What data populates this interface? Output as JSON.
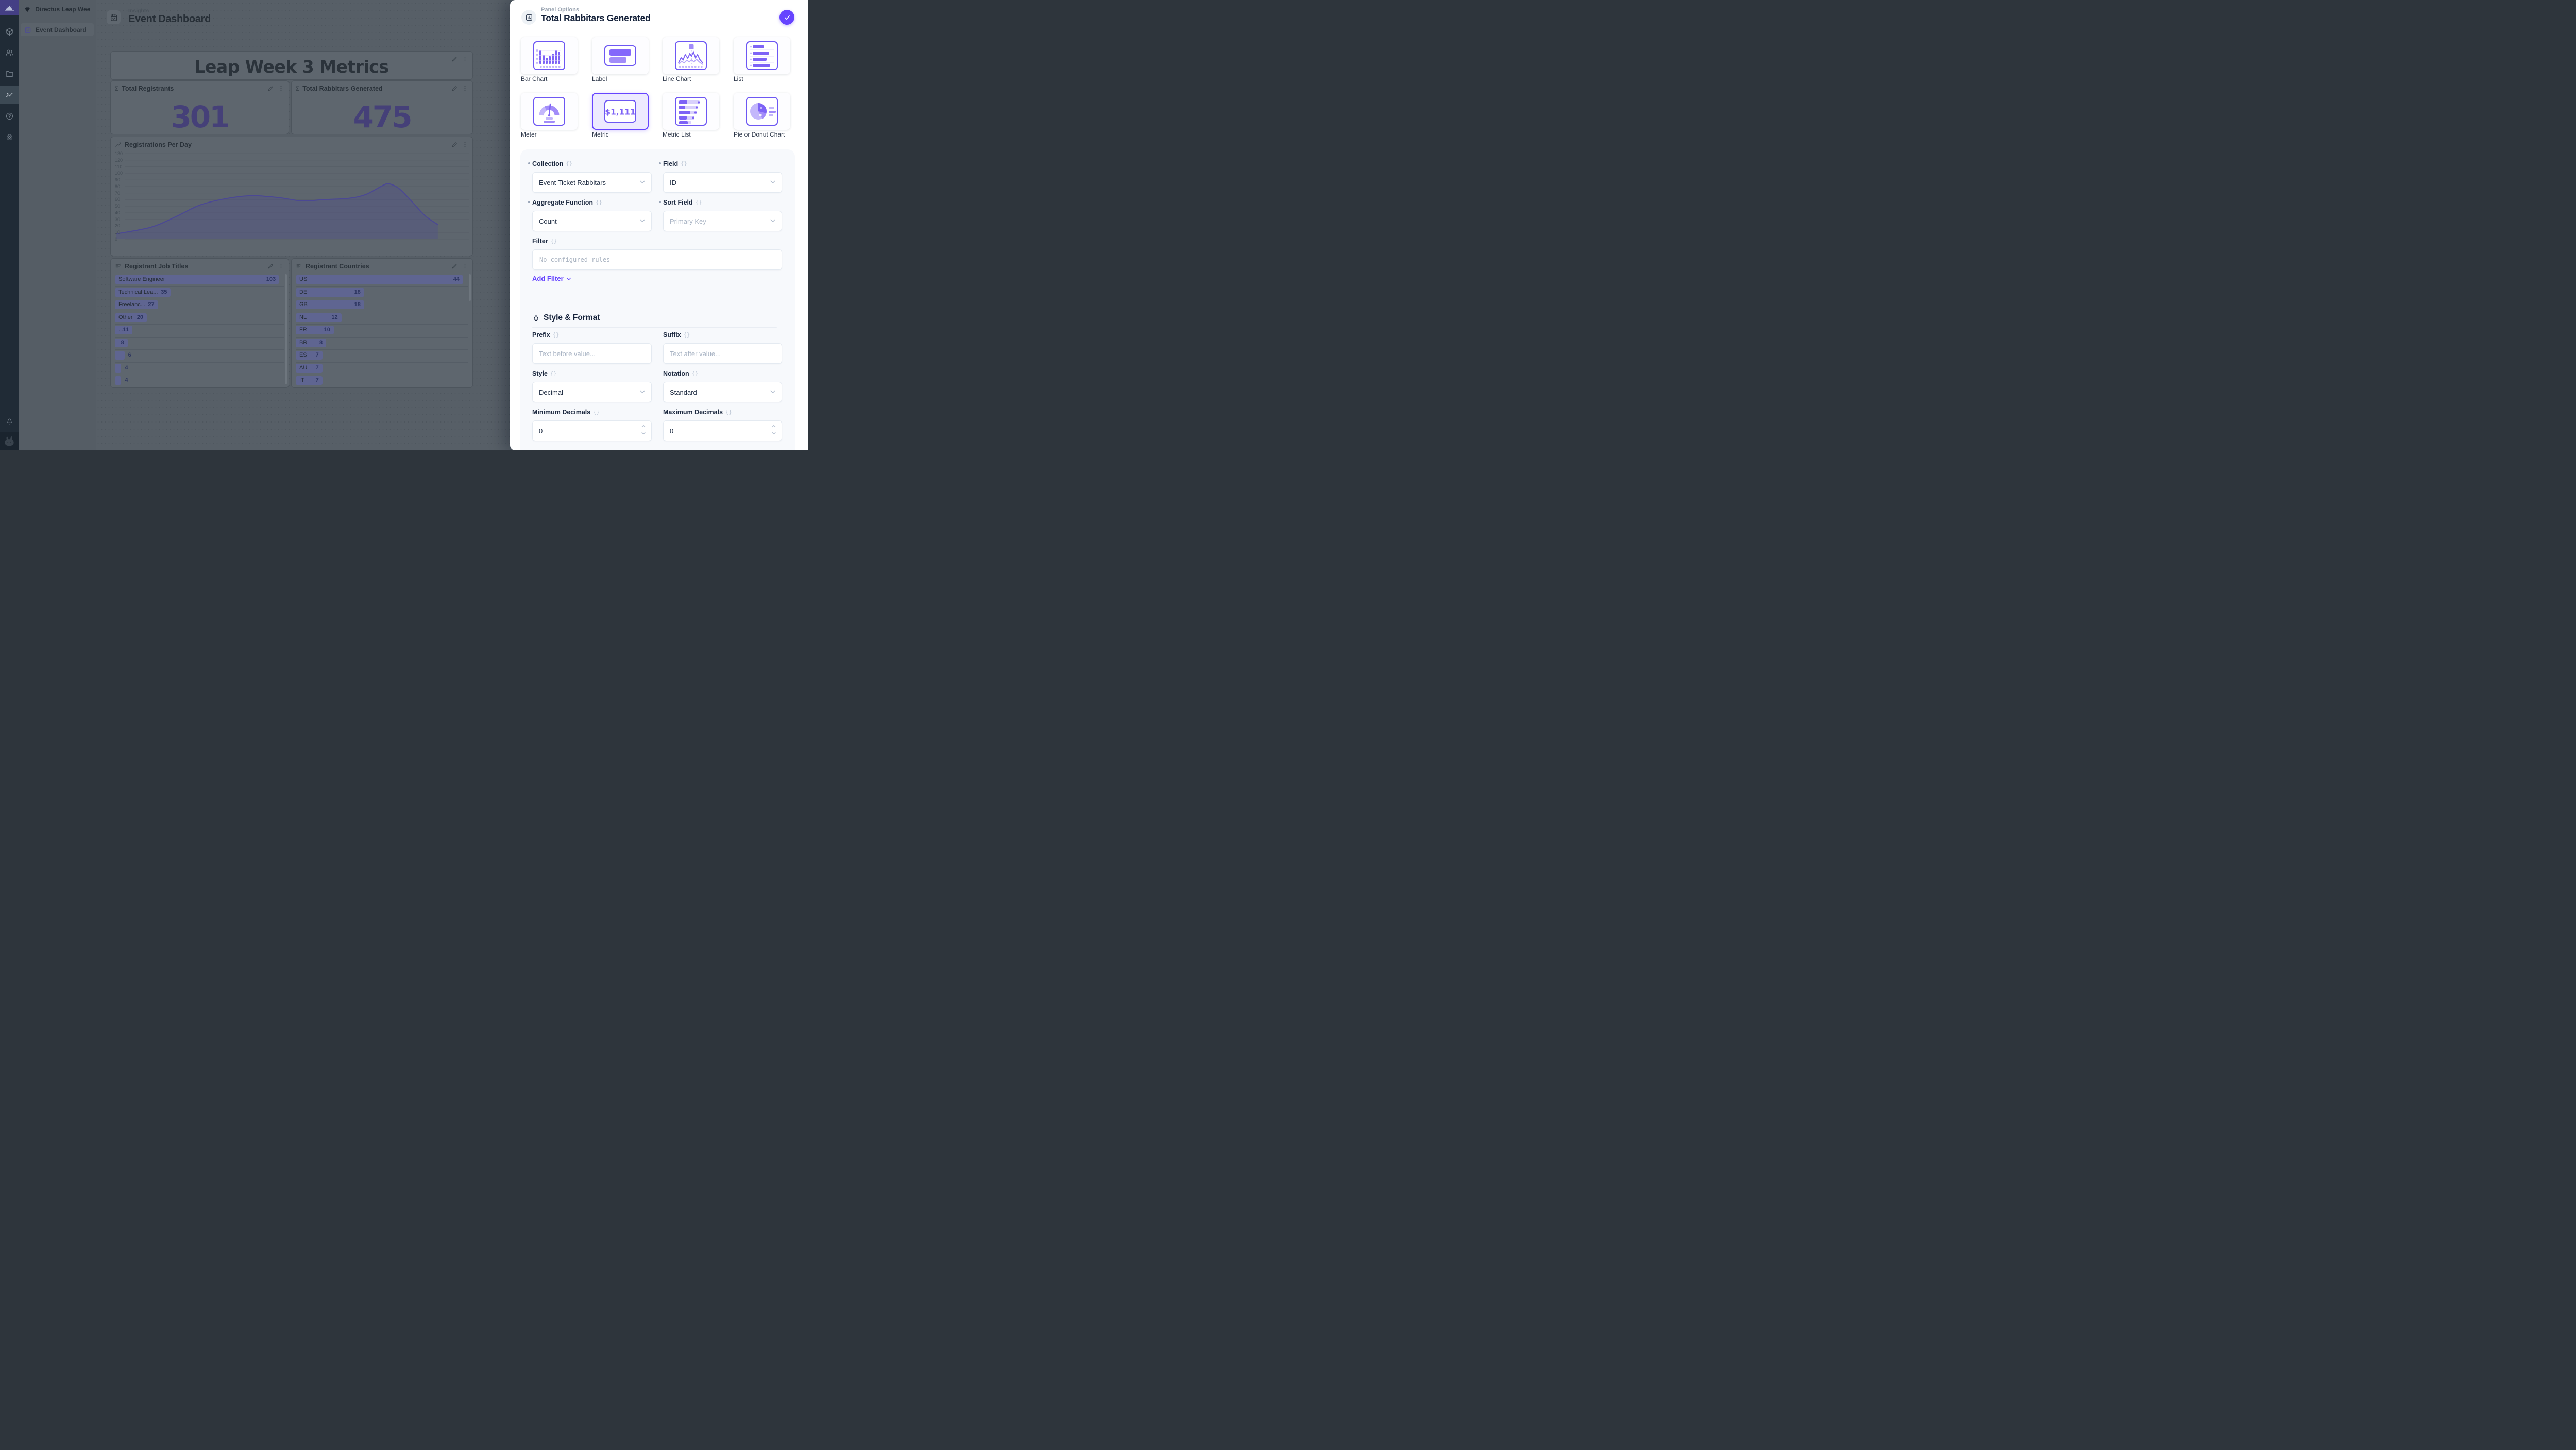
{
  "accent_color": "#6644FF",
  "module_bar": {
    "icons": [
      "directus-rabbit-logo",
      "content-module",
      "users-module",
      "files-module",
      "insights-module",
      "help",
      "settings",
      "notifications",
      "avatar"
    ],
    "active_module": "insights-module"
  },
  "sidebar": {
    "project_name": "Directus Leap Week",
    "items": [
      {
        "label": "Event Dashboard",
        "active": true
      }
    ]
  },
  "header": {
    "breadcrumb": "Insights",
    "title": "Event Dashboard"
  },
  "dashboard": {
    "title_panel": {
      "title": "Leap Week 3 Metrics"
    },
    "metric_panels": [
      {
        "label": "Total Registrants",
        "value": "301"
      },
      {
        "label": "Total Rabbitars Generated",
        "value": "475"
      }
    ]
  },
  "chart_data": [
    {
      "type": "area",
      "title": "Registrations Per Day",
      "xlabel": "",
      "ylabel": "",
      "ylim": [
        0,
        130
      ],
      "y_tick_step": 10,
      "x_ticks": [
        "Jun '24",
        "02 Jun",
        "03 Jun",
        "04 Jun",
        "05 Jun",
        "06 Jun",
        "07 Jun"
      ],
      "grid": true,
      "legend": "none",
      "points_day_value": [
        [
          -0.7,
          8
        ],
        [
          0,
          18
        ],
        [
          0.5,
          34
        ],
        [
          1,
          52
        ],
        [
          1.55,
          62
        ],
        [
          2.05,
          66
        ],
        [
          2.6,
          63
        ],
        [
          3.05,
          58
        ],
        [
          3.5,
          60
        ],
        [
          4,
          62
        ],
        [
          4.35,
          68
        ],
        [
          4.7,
          82
        ],
        [
          4.82,
          84
        ],
        [
          5.03,
          76
        ],
        [
          5.3,
          55
        ],
        [
          5.55,
          35
        ],
        [
          5.8,
          22
        ]
      ]
    },
    {
      "type": "bar",
      "title": "Registrant Job Titles",
      "categories": [
        "Software Engineer",
        "Technical Lea...",
        "Freelanc...",
        "Other",
        "...",
        "",
        "",
        "",
        ""
      ],
      "values": [
        103,
        35,
        27,
        20,
        11,
        8,
        6,
        4,
        4
      ]
    },
    {
      "type": "bar",
      "title": "Registrant Countries",
      "categories": [
        "US",
        "DE",
        "GB",
        "NL",
        "FR",
        "BR",
        "ES",
        "AU",
        "IT"
      ],
      "values": [
        44,
        18,
        18,
        12,
        10,
        8,
        7,
        7,
        7
      ]
    }
  ],
  "drawer": {
    "eyebrow": "Panel Options",
    "title": "Total Rabbitars Generated",
    "tiles": [
      {
        "label": "Bar Chart",
        "selected": false
      },
      {
        "label": "Label",
        "selected": false
      },
      {
        "label": "Line Chart",
        "selected": false
      },
      {
        "label": "List",
        "selected": false
      },
      {
        "label": "Meter",
        "selected": false
      },
      {
        "label": "Metric",
        "selected": true
      },
      {
        "label": "Metric List",
        "selected": false
      },
      {
        "label": "Pie or Donut Chart",
        "selected": false
      }
    ],
    "collection": {
      "label": "Collection",
      "value": "Event Ticket Rabbitars",
      "required": true
    },
    "field": {
      "label": "Field",
      "value": "ID",
      "required": true
    },
    "aggregate": {
      "label": "Aggregate Function",
      "value": "Count",
      "required": true
    },
    "sort": {
      "label": "Sort Field",
      "placeholder": "Primary Key",
      "required": true
    },
    "filter": {
      "label": "Filter",
      "empty_text": "No configured rules",
      "add_label": "Add Filter"
    },
    "style_format": {
      "heading": "Style & Format",
      "prefix": {
        "label": "Prefix",
        "placeholder": "Text before value..."
      },
      "suffix": {
        "label": "Suffix",
        "placeholder": "Text after value..."
      },
      "style": {
        "label": "Style",
        "value": "Decimal"
      },
      "notation": {
        "label": "Notation",
        "value": "Standard"
      },
      "min_decimals": {
        "label": "Minimum Decimals",
        "value": "0"
      },
      "max_decimals": {
        "label": "Maximum Decimals",
        "value": "0"
      }
    }
  }
}
